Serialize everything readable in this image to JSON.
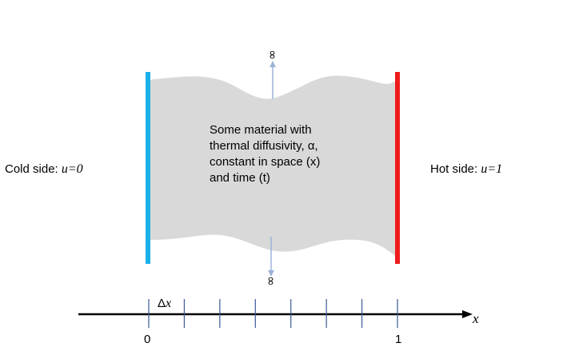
{
  "labels": {
    "cold_side_prefix": "Cold side: ",
    "cold_side_var": "u=0",
    "hot_side_prefix": "Hot side: ",
    "hot_side_var": "u=1",
    "infinity_top": "∞",
    "infinity_bottom": "∞"
  },
  "material": {
    "lines": [
      "Some material with",
      "thermal diffusivity, α,",
      "constant in space (x)",
      "and time (t)"
    ]
  },
  "axis": {
    "variable": "x",
    "tick_start": "0",
    "tick_end": "1",
    "delta_prefix": "Δ",
    "delta_var": "x",
    "tick_count": 8
  },
  "colors": {
    "cold": "#1AB0E8",
    "hot": "#EE1C1C",
    "material": "#D9D9D9",
    "axis": "#000000",
    "ticks": "#3B5998",
    "infinity_arrow": "#9DB3D8"
  }
}
